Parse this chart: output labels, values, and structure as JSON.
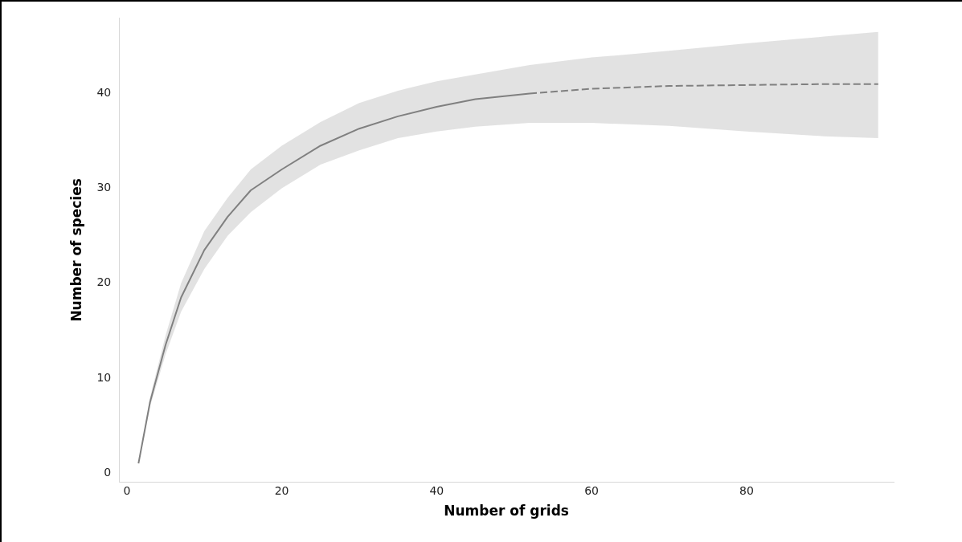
{
  "chart_data": {
    "type": "line",
    "xlabel": "Number of grids",
    "ylabel": "Number of species",
    "xlim": [
      -1,
      99
    ],
    "ylim": [
      -1,
      48
    ],
    "xticks": [
      0,
      20,
      40,
      60,
      80
    ],
    "yticks": [
      0,
      10,
      20,
      30,
      40
    ],
    "grid": false,
    "legend": false,
    "marker": "none",
    "series": [
      {
        "color": "#808080",
        "line_style": "solid",
        "x": [
          1.5,
          3,
          5,
          7,
          10,
          13,
          16,
          20,
          25,
          30,
          35,
          40,
          45,
          52
        ],
        "values": [
          1,
          7.5,
          13.5,
          18.5,
          23.5,
          27,
          29.8,
          32,
          34.5,
          36.3,
          37.6,
          38.6,
          39.4,
          40
        ],
        "lower": [
          1,
          7,
          12.5,
          17,
          21.5,
          25,
          27.5,
          30,
          32.5,
          34,
          35.3,
          36,
          36.5,
          36.9
        ],
        "upper": [
          1,
          8,
          14.5,
          20,
          25.5,
          29,
          32,
          34.5,
          37,
          39,
          40.3,
          41.3,
          42,
          43
        ]
      },
      {
        "color": "#808080",
        "line_style": "dashed",
        "x": [
          52,
          60,
          70,
          80,
          90,
          97
        ],
        "values": [
          40,
          40.5,
          40.8,
          40.9,
          41,
          41
        ],
        "lower": [
          36.9,
          36.9,
          36.6,
          36,
          35.5,
          35.3
        ],
        "upper": [
          43,
          43.8,
          44.5,
          45.3,
          46,
          46.5
        ]
      }
    ]
  }
}
